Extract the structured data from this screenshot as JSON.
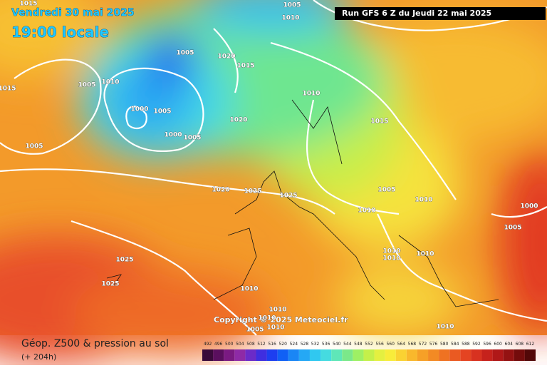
{
  "header": {
    "date": "Vendredi 30 mai 2025",
    "time": "19:00 locale",
    "run": "Run GFS 6 Z du Jeudi 22 mai 2025"
  },
  "map": {
    "isobar_labels": [
      "1015",
      "1005",
      "1010",
      "1005",
      "1020",
      "1015",
      "1010",
      "1005",
      "1015",
      "1000",
      "1005",
      "1010",
      "1020",
      "1015",
      "1000",
      "1005",
      "1005",
      "1020",
      "1025",
      "1025",
      "1005",
      "1010",
      "1010",
      "1000",
      "1005",
      "1010",
      "1010",
      "1010",
      "1025",
      "1025",
      "1010",
      "1010",
      "1010",
      "1005",
      "1010",
      "1010"
    ],
    "copyright": "Copyright © 2025 Meteociel.fr"
  },
  "footer": {
    "title": "Géop. Z500 & pression au sol",
    "lead": "(+ 204h)",
    "scale": {
      "values": [
        492,
        496,
        500,
        504,
        508,
        512,
        516,
        520,
        524,
        528,
        532,
        536,
        540,
        544,
        548,
        552,
        556,
        560,
        564,
        568,
        572,
        576,
        580,
        584,
        588,
        592,
        596,
        600,
        604,
        608,
        612
      ],
      "colors": [
        "#3a0a3a",
        "#5a0f5e",
        "#7a1a82",
        "#8e2aa6",
        "#6b2bc8",
        "#3f2ee0",
        "#1d3ef0",
        "#1060f5",
        "#1a86f5",
        "#25a8f5",
        "#30c8f0",
        "#45dbe0",
        "#5fe6b8",
        "#7be88a",
        "#9ef064",
        "#c4f04a",
        "#e4f040",
        "#f8ec3a",
        "#fad232",
        "#f9b82c",
        "#f6a027",
        "#f38a24",
        "#ef7222",
        "#ea5a22",
        "#e44422",
        "#d83220",
        "#c6221c",
        "#b01818",
        "#941212",
        "#740c0c",
        "#520808"
      ]
    }
  }
}
